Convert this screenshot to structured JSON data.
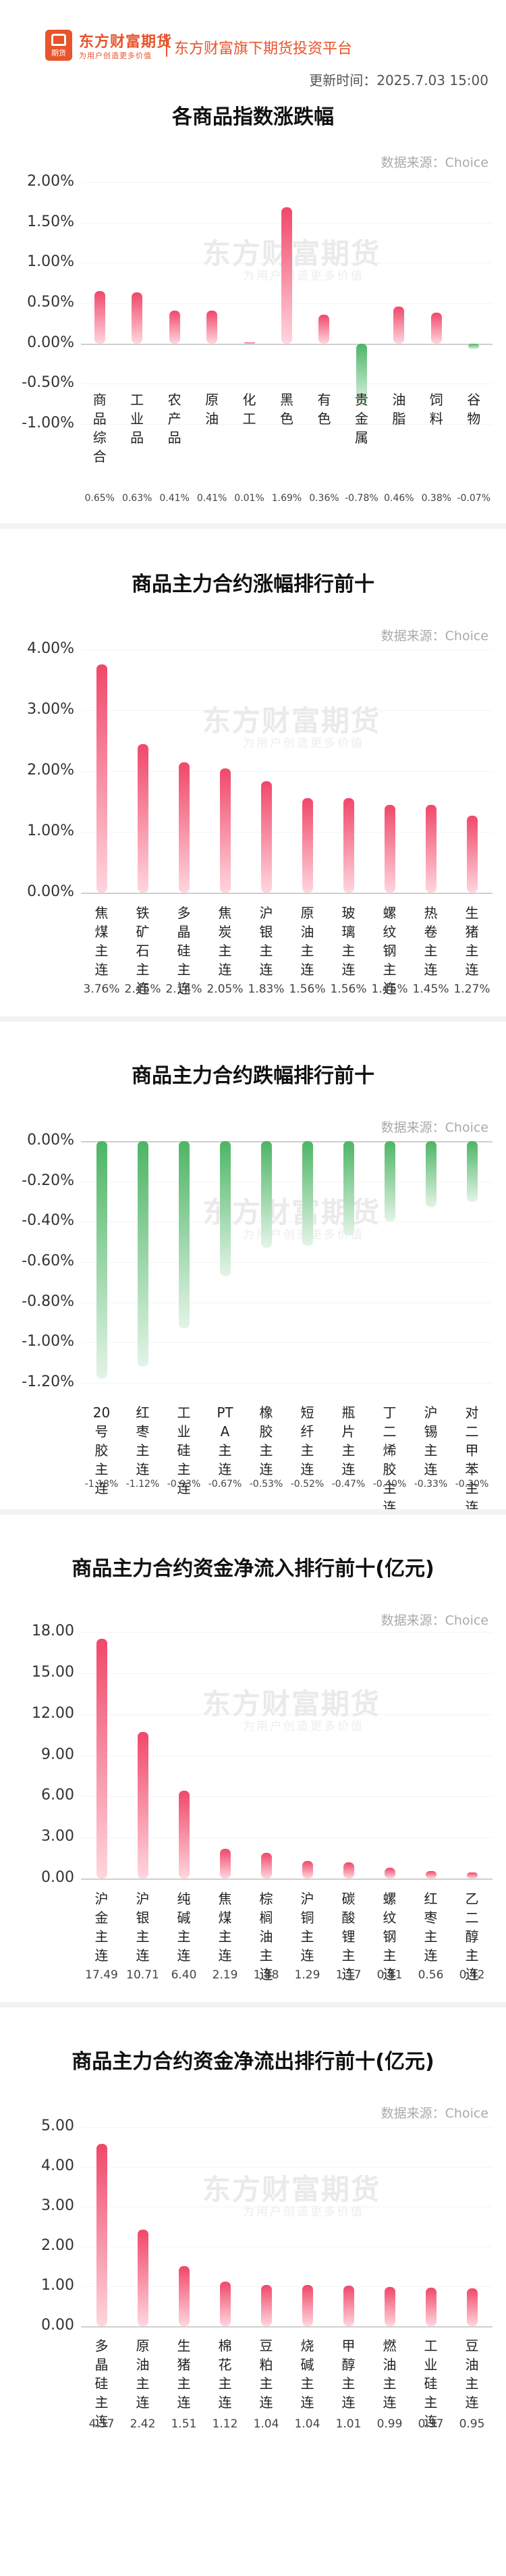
{
  "header": {
    "brand": "东方财富期货",
    "brand_sub": "为用户创造更多价值",
    "logo_text": "期货",
    "platform": "东方财富旗下期货投资平台",
    "update_time": "更新时间：2025.7.03 15:00"
  },
  "source": "数据来源：Choice",
  "watermark": "东方财富期货",
  "watermark_sub": "为用户创造更多价值",
  "colors": {
    "up": "#f0486a",
    "down": "#4db565",
    "brand": "#e8542c"
  },
  "chart_data": [
    {
      "type": "bar",
      "title": "各商品指数涨跌幅",
      "categories": [
        "商品综合",
        "工业品",
        "农产品",
        "原油",
        "化工",
        "黑色",
        "有色",
        "贵金属",
        "油脂",
        "饲料",
        "谷物"
      ],
      "value_labels": [
        "0.65%",
        "0.63%",
        "0.41%",
        "0.41%",
        "0.01%",
        "1.69%",
        "0.36%",
        "-0.78%",
        "0.46%",
        "0.38%",
        "-0.07%"
      ],
      "values": [
        0.65,
        0.63,
        0.41,
        0.41,
        0.01,
        1.69,
        0.36,
        -0.78,
        0.46,
        0.38,
        -0.07
      ],
      "yticks": [
        "2.00%",
        "1.50%",
        "1.00%",
        "0.50%",
        "0.00%",
        "-0.50%",
        "-1.00%"
      ],
      "ylim": [
        -1.0,
        2.0
      ],
      "unit": "%"
    },
    {
      "type": "bar",
      "title": "商品主力合约涨幅排行前十",
      "categories": [
        "焦煤主连",
        "铁矿石主连",
        "多晶硅主连",
        "焦炭主连",
        "沪银主连",
        "原油主连",
        "玻璃主连",
        "螺纹钢主连",
        "热卷主连",
        "生猪主连"
      ],
      "value_labels": [
        "3.76%",
        "2.45%",
        "2.14%",
        "2.05%",
        "1.83%",
        "1.56%",
        "1.56%",
        "1.45%",
        "1.45%",
        "1.27%"
      ],
      "values": [
        3.76,
        2.45,
        2.14,
        2.05,
        1.83,
        1.56,
        1.56,
        1.45,
        1.45,
        1.27
      ],
      "yticks": [
        "4.00%",
        "3.00%",
        "2.00%",
        "1.00%",
        "0.00%"
      ],
      "ylim": [
        0,
        4.0
      ],
      "unit": "%"
    },
    {
      "type": "bar",
      "title": "商品主力合约跌幅排行前十",
      "categories": [
        "20号胶主连",
        "红枣主连",
        "工业硅主连",
        "PTA主连",
        "橡胶主连",
        "短纤主连",
        "瓶片主连",
        "丁二烯胶主连",
        "沪锡主连",
        "对二甲苯主连"
      ],
      "value_labels": [
        "-1.18%",
        "-1.12%",
        "-0.93%",
        "-0.67%",
        "-0.53%",
        "-0.52%",
        "-0.47%",
        "-0.40%",
        "-0.33%",
        "-0.30%"
      ],
      "values": [
        -1.18,
        -1.12,
        -0.93,
        -0.67,
        -0.53,
        -0.52,
        -0.47,
        -0.4,
        -0.33,
        -0.3
      ],
      "yticks": [
        "0.00%",
        "-0.20%",
        "-0.40%",
        "-0.60%",
        "-0.80%",
        "-1.00%",
        "-1.20%"
      ],
      "ylim": [
        -1.2,
        0
      ],
      "unit": "%"
    },
    {
      "type": "bar",
      "title": "商品主力合约资金净流入排行前十(亿元)",
      "categories": [
        "沪金主连",
        "沪银主连",
        "纯碱主连",
        "焦煤主连",
        "棕榈油主连",
        "沪铜主连",
        "碳酸锂主连",
        "螺纹钢主连",
        "红枣主连",
        "乙二醇主连"
      ],
      "value_labels": [
        "17.49",
        "10.71",
        "6.40",
        "2.19",
        "1.88",
        "1.29",
        "1.17",
        "0.81",
        "0.56",
        "0.42"
      ],
      "values": [
        17.49,
        10.71,
        6.4,
        2.19,
        1.88,
        1.29,
        1.17,
        0.81,
        0.56,
        0.42
      ],
      "yticks": [
        "18.00",
        "15.00",
        "12.00",
        "9.00",
        "6.00",
        "3.00",
        "0.00"
      ],
      "ylim": [
        0,
        18.0
      ],
      "unit": "亿元"
    },
    {
      "type": "bar",
      "title": "商品主力合约资金净流出排行前十(亿元)",
      "categories": [
        "多晶硅主连",
        "原油主连",
        "生猪主连",
        "棉花主连",
        "豆粕主连",
        "烧碱主连",
        "甲醇主连",
        "燃油主连",
        "工业硅主连",
        "豆油主连"
      ],
      "value_labels": [
        "4.57",
        "2.42",
        "1.51",
        "1.12",
        "1.04",
        "1.04",
        "1.01",
        "0.99",
        "0.97",
        "0.95"
      ],
      "values": [
        4.57,
        2.42,
        1.51,
        1.12,
        1.04,
        1.04,
        1.01,
        0.99,
        0.97,
        0.95
      ],
      "yticks": [
        "5.00",
        "4.00",
        "3.00",
        "2.00",
        "1.00",
        "0.00"
      ],
      "ylim": [
        0,
        5.0
      ],
      "unit": "亿元"
    }
  ]
}
